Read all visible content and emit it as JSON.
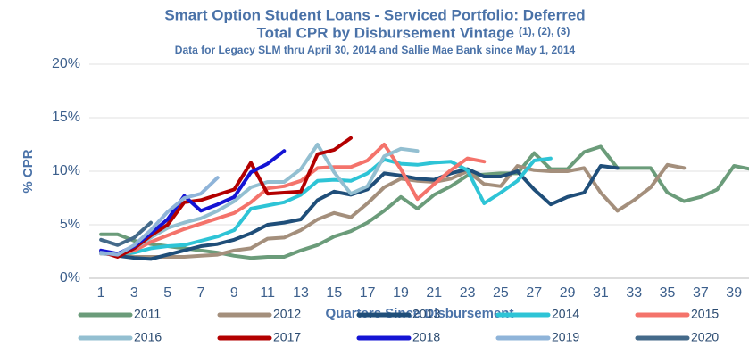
{
  "chart_data": {
    "type": "line",
    "title": "Smart Option Student Loans - Serviced Portfolio: Deferred",
    "title_line2": "Total CPR by Disbursement Vintage",
    "title_note": "(1), (2), (3)",
    "subtitle": "Data for Legacy SLM thru April 30, 2014 and Sallie Mae Bank since May 1, 2014",
    "x_label": "Quarters Since Disbursement",
    "y_label": "% CPR",
    "xlim": [
      0.3,
      39.9
    ],
    "xticks": [
      1,
      3,
      5,
      7,
      9,
      11,
      13,
      15,
      17,
      19,
      21,
      23,
      25,
      27,
      29,
      31,
      33,
      35,
      37,
      39
    ],
    "ylim": [
      0,
      20
    ],
    "yticks": [
      {
        "value": 0,
        "label": "0%"
      },
      {
        "value": 5,
        "label": "5%"
      },
      {
        "value": 10,
        "label": "10%"
      },
      {
        "value": 15,
        "label": "15%"
      },
      {
        "value": 20,
        "label": "20%"
      }
    ],
    "grid": true,
    "legend": "bottom",
    "series": [
      {
        "name": "2011",
        "color": "#6b9c7a",
        "values": [
          4.1,
          4.1,
          3.5,
          3.2,
          3.0,
          2.8,
          2.6,
          2.4,
          2.1,
          1.9,
          2.0,
          2.0,
          2.6,
          3.1,
          3.9,
          4.4,
          5.2,
          6.3,
          7.6,
          6.5,
          7.8,
          8.6,
          9.6,
          9.7,
          9.8,
          9.8,
          11.7,
          10.2,
          10.2,
          11.8,
          12.3,
          10.3,
          10.3,
          10.3,
          8.0,
          7.2,
          7.6,
          8.3,
          10.5,
          10.2
        ]
      },
      {
        "name": "2012",
        "color": "#a48f7c",
        "values": [
          2.4,
          2.2,
          2.0,
          2.0,
          2.0,
          2.0,
          2.1,
          2.2,
          2.6,
          2.8,
          3.7,
          3.8,
          4.5,
          5.5,
          6.1,
          5.7,
          7.0,
          8.5,
          9.3,
          9.1,
          9.0,
          9.3,
          10.0,
          8.8,
          8.6,
          10.5,
          10.1,
          10.0,
          10.0,
          10.3,
          8.0,
          6.3,
          7.3,
          8.5,
          10.6,
          10.3
        ]
      },
      {
        "name": "2013",
        "color": "#1f4e79",
        "values": [
          2.4,
          2.1,
          1.9,
          1.8,
          2.2,
          2.6,
          3.0,
          3.2,
          3.6,
          4.2,
          5.0,
          5.2,
          5.5,
          7.3,
          8.1,
          7.8,
          8.3,
          9.8,
          9.6,
          9.3,
          9.2,
          9.8,
          10.2,
          9.5,
          9.5,
          10.0,
          8.3,
          6.9,
          7.6,
          8.0,
          10.5,
          10.3
        ]
      },
      {
        "name": "2014",
        "color": "#2ec4d6",
        "values": [
          2.5,
          2.3,
          2.4,
          2.8,
          3.0,
          3.1,
          3.5,
          3.9,
          4.5,
          6.5,
          6.8,
          7.1,
          7.8,
          9.1,
          9.2,
          9.1,
          9.8,
          11.1,
          10.7,
          10.6,
          10.8,
          10.9,
          10.1,
          7.0,
          8.0,
          9.1,
          11.0,
          11.2
        ]
      },
      {
        "name": "2015",
        "color": "#f4736b",
        "values": [
          2.3,
          2.2,
          2.6,
          3.4,
          4.0,
          4.6,
          5.1,
          5.6,
          6.1,
          7.1,
          8.4,
          8.6,
          9.1,
          10.3,
          10.4,
          10.4,
          11.0,
          12.5,
          10.2,
          7.4,
          8.8,
          10.1,
          11.2,
          10.9
        ]
      },
      {
        "name": "2016",
        "color": "#93bfd1",
        "values": [
          2.3,
          2.2,
          2.8,
          3.8,
          4.7,
          5.2,
          5.6,
          6.3,
          7.2,
          8.5,
          9.0,
          9.0,
          10.2,
          12.5,
          9.9,
          7.9,
          8.6,
          11.4,
          12.1,
          11.9
        ]
      },
      {
        "name": "2017",
        "color": "#b30000",
        "values": [
          2.5,
          2.0,
          2.8,
          4.0,
          5.0,
          7.1,
          7.3,
          7.8,
          8.3,
          10.8,
          7.9,
          8.0,
          8.1,
          11.6,
          12.0,
          13.1
        ]
      },
      {
        "name": "2018",
        "color": "#1414d4",
        "values": [
          2.6,
          2.3,
          3.0,
          4.2,
          5.5,
          7.7,
          6.3,
          6.9,
          7.6,
          9.9,
          10.7,
          11.9
        ]
      },
      {
        "name": "2019",
        "color": "#8fb4d9",
        "values": [
          2.4,
          2.2,
          3.1,
          4.5,
          6.2,
          7.5,
          7.9,
          9.4
        ]
      },
      {
        "name": "2020",
        "color": "#446a8a",
        "values": [
          3.6,
          3.1,
          3.8,
          5.2
        ]
      }
    ]
  }
}
